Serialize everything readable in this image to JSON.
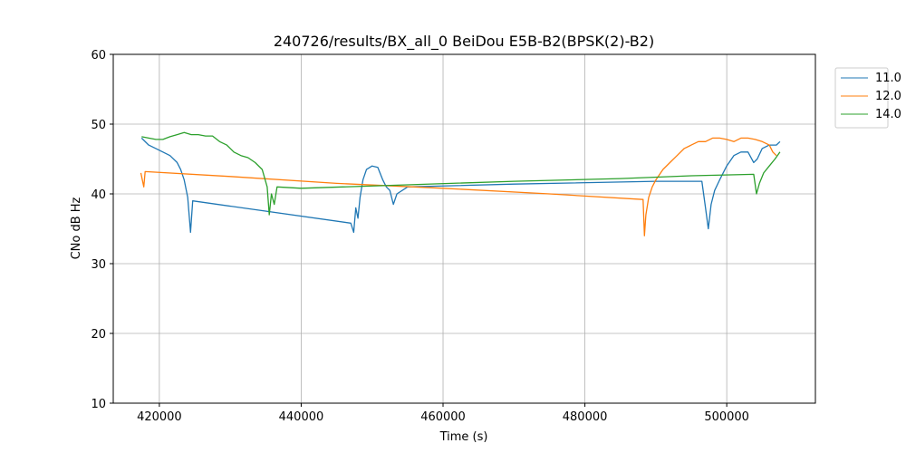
{
  "chart_data": {
    "type": "line",
    "title": "240726/results/BX_all_0 BeiDou E5B-B2(BPSK(2)-B2)",
    "xlabel": "Time (s)",
    "ylabel": "CNo dB Hz",
    "xlim": [
      413500,
      512500
    ],
    "ylim": [
      10,
      60
    ],
    "xticks": [
      420000,
      440000,
      460000,
      480000,
      500000
    ],
    "yticks": [
      10,
      20,
      30,
      40,
      50,
      60
    ],
    "grid": true,
    "legend_position": "outside-top-right",
    "series": [
      {
        "name": "11.0",
        "color": "#1f77b4",
        "points": [
          [
            417500,
            48
          ],
          [
            418500,
            47
          ],
          [
            419500,
            46.5
          ],
          [
            420500,
            46
          ],
          [
            421500,
            45.5
          ],
          [
            422500,
            44.5
          ],
          [
            423000,
            43.5
          ],
          [
            423500,
            42
          ],
          [
            424000,
            39.5
          ],
          [
            424400,
            34.5
          ],
          [
            424700,
            39
          ],
          [
            447000,
            35.8
          ],
          [
            447400,
            34.5
          ],
          [
            447700,
            38
          ],
          [
            448000,
            36.5
          ],
          [
            448300,
            39.5
          ],
          [
            448700,
            42
          ],
          [
            449200,
            43.5
          ],
          [
            450000,
            44
          ],
          [
            450800,
            43.8
          ],
          [
            451500,
            42
          ],
          [
            452000,
            41
          ],
          [
            452500,
            40.5
          ],
          [
            453000,
            38.5
          ],
          [
            453500,
            40
          ],
          [
            455000,
            41
          ],
          [
            470000,
            41.4
          ],
          [
            490000,
            41.8
          ],
          [
            496500,
            41.8
          ],
          [
            497000,
            38
          ],
          [
            497400,
            35
          ],
          [
            497800,
            38.5
          ],
          [
            498300,
            40.5
          ],
          [
            499000,
            42
          ],
          [
            500000,
            44
          ],
          [
            501000,
            45.5
          ],
          [
            502000,
            46
          ],
          [
            503000,
            46
          ],
          [
            503800,
            44.5
          ],
          [
            504300,
            45
          ],
          [
            505000,
            46.5
          ],
          [
            506000,
            47
          ],
          [
            507000,
            47
          ],
          [
            507500,
            47.5
          ]
        ]
      },
      {
        "name": "12.0",
        "color": "#ff7f0e",
        "points": [
          [
            417400,
            43
          ],
          [
            417600,
            42
          ],
          [
            417800,
            41
          ],
          [
            418000,
            43.2
          ],
          [
            430000,
            42.5
          ],
          [
            445000,
            41.5
          ],
          [
            460000,
            40.8
          ],
          [
            475000,
            40
          ],
          [
            488200,
            39.2
          ],
          [
            488400,
            34
          ],
          [
            488600,
            37
          ],
          [
            489000,
            39.5
          ],
          [
            489500,
            41
          ],
          [
            490000,
            42
          ],
          [
            491000,
            43.5
          ],
          [
            492000,
            44.5
          ],
          [
            493000,
            45.5
          ],
          [
            494000,
            46.5
          ],
          [
            495000,
            47
          ],
          [
            496000,
            47.5
          ],
          [
            497000,
            47.5
          ],
          [
            498000,
            48
          ],
          [
            499000,
            48
          ],
          [
            500000,
            47.8
          ],
          [
            501000,
            47.5
          ],
          [
            502000,
            48
          ],
          [
            503000,
            48
          ],
          [
            504000,
            47.8
          ],
          [
            505000,
            47.5
          ],
          [
            506000,
            47
          ],
          [
            506500,
            46
          ],
          [
            507000,
            45.5
          ]
        ]
      },
      {
        "name": "14.0",
        "color": "#2ca02c",
        "points": [
          [
            417500,
            48.2
          ],
          [
            418500,
            48
          ],
          [
            419500,
            47.8
          ],
          [
            420500,
            47.8
          ],
          [
            421500,
            48.2
          ],
          [
            422500,
            48.5
          ],
          [
            423500,
            48.8
          ],
          [
            424500,
            48.5
          ],
          [
            425500,
            48.5
          ],
          [
            426500,
            48.3
          ],
          [
            427500,
            48.3
          ],
          [
            428500,
            47.5
          ],
          [
            429500,
            47
          ],
          [
            430500,
            46
          ],
          [
            431500,
            45.5
          ],
          [
            432500,
            45.2
          ],
          [
            433500,
            44.5
          ],
          [
            434500,
            43.5
          ],
          [
            435200,
            41
          ],
          [
            435500,
            37
          ],
          [
            435800,
            40
          ],
          [
            436200,
            38.5
          ],
          [
            436600,
            41
          ],
          [
            440000,
            40.8
          ],
          [
            455000,
            41.3
          ],
          [
            470000,
            41.8
          ],
          [
            485000,
            42.2
          ],
          [
            495000,
            42.6
          ],
          [
            503800,
            42.8
          ],
          [
            504200,
            40
          ],
          [
            504600,
            41.5
          ],
          [
            505200,
            43
          ],
          [
            506000,
            44
          ],
          [
            506800,
            45
          ],
          [
            507500,
            46
          ]
        ]
      }
    ]
  }
}
